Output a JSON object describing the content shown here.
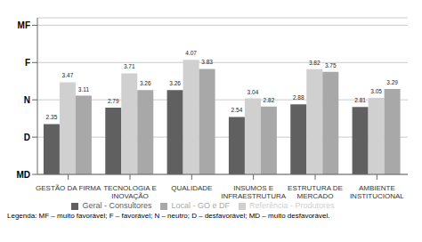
{
  "chart_data": {
    "type": "bar",
    "categories": [
      "GESTÃO DA FIRMA",
      "TECNOLOGIA E\nINOVAÇÃO",
      "QUALIDADE",
      "INSUMOS E\nINFRAESTRUTURA",
      "ESTRUTURA DE\nMERCADO",
      "AMBIENTE\nINSTITUCIONAL"
    ],
    "series": [
      {
        "name": "Geral - Consultores",
        "color": "#606060",
        "values": [
          2.35,
          2.79,
          3.26,
          2.54,
          2.88,
          2.81
        ]
      },
      {
        "name": "Referência - Produtores",
        "color": "#d0d0d0",
        "values": [
          3.47,
          3.71,
          4.07,
          3.04,
          3.82,
          3.05
        ]
      },
      {
        "name": "Local - GO e DF",
        "color": "#a8a8a8",
        "values": [
          3.11,
          3.26,
          3.83,
          2.82,
          3.75,
          3.29
        ]
      }
    ],
    "ylim": [
      1,
      5.2
    ],
    "yticks": [
      {
        "value": 1,
        "label": "MD"
      },
      {
        "value": 2,
        "label": "D"
      },
      {
        "value": 3,
        "label": "N"
      },
      {
        "value": 4,
        "label": "F"
      },
      {
        "value": 5,
        "label": "MF"
      }
    ],
    "grid": true,
    "legend": "bottom",
    "data_labels": true,
    "annotations": [
      "Legenda: MF – muito favorável; F – favorável; N – neutro; D – desfavorável; MD – muito desfavorável."
    ]
  }
}
